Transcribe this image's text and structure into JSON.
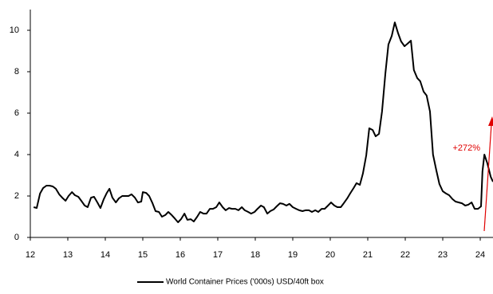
{
  "chart_data": {
    "type": "line",
    "x": [
      12.09,
      12.17,
      12.26,
      12.34,
      12.43,
      12.51,
      12.6,
      12.68,
      12.77,
      12.85,
      12.94,
      13.02,
      13.11,
      13.19,
      13.28,
      13.36,
      13.45,
      13.53,
      13.62,
      13.7,
      13.79,
      13.87,
      13.96,
      14.04,
      14.11,
      14.19,
      14.28,
      14.36,
      14.45,
      14.53,
      14.62,
      14.7,
      14.79,
      14.87,
      14.96,
      15.0,
      15.09,
      15.17,
      15.26,
      15.34,
      15.43,
      15.51,
      15.6,
      15.68,
      15.77,
      15.85,
      15.94,
      16.02,
      16.11,
      16.19,
      16.28,
      16.36,
      16.45,
      16.53,
      16.62,
      16.7,
      16.79,
      16.87,
      16.96,
      17.04,
      17.13,
      17.21,
      17.3,
      17.38,
      17.47,
      17.55,
      17.64,
      17.72,
      17.81,
      17.89,
      17.98,
      18.06,
      18.15,
      18.23,
      18.32,
      18.4,
      18.49,
      18.57,
      18.66,
      18.74,
      18.83,
      18.91,
      19.0,
      19.09,
      19.17,
      19.26,
      19.34,
      19.43,
      19.51,
      19.6,
      19.68,
      19.77,
      19.85,
      19.94,
      20.02,
      20.11,
      20.19,
      20.28,
      20.36,
      20.45,
      20.53,
      20.62,
      20.7,
      20.79,
      20.87,
      20.96,
      21.04,
      21.13,
      21.21,
      21.3,
      21.38,
      21.47,
      21.55,
      21.64,
      21.72,
      21.81,
      21.89,
      21.98,
      22.06,
      22.15,
      22.23,
      22.32,
      22.4,
      22.49,
      22.57,
      22.66,
      22.74,
      22.83,
      22.91,
      23.0,
      23.09,
      23.17,
      23.26,
      23.34,
      23.43,
      23.51,
      23.6,
      23.68,
      23.77,
      23.85,
      23.94,
      24.02,
      24.06,
      24.11,
      24.19,
      24.28,
      24.34
    ],
    "series": [
      {
        "name": "World Container Prices ('000s) USD/40ft box",
        "color": "#000000",
        "values": [
          1.46,
          1.42,
          2.12,
          2.38,
          2.5,
          2.5,
          2.46,
          2.35,
          2.08,
          1.92,
          1.77,
          2.0,
          2.19,
          2.04,
          1.96,
          1.77,
          1.54,
          1.46,
          1.92,
          1.96,
          1.69,
          1.42,
          1.85,
          2.15,
          2.35,
          1.92,
          1.69,
          1.88,
          2.0,
          2.0,
          2.0,
          2.08,
          1.92,
          1.69,
          1.73,
          2.19,
          2.15,
          2.0,
          1.65,
          1.27,
          1.23,
          1.0,
          1.08,
          1.23,
          1.08,
          0.92,
          0.73,
          0.88,
          1.15,
          0.85,
          0.88,
          0.77,
          1.0,
          1.23,
          1.15,
          1.15,
          1.38,
          1.38,
          1.46,
          1.69,
          1.46,
          1.31,
          1.42,
          1.38,
          1.38,
          1.31,
          1.46,
          1.31,
          1.23,
          1.15,
          1.23,
          1.38,
          1.54,
          1.46,
          1.15,
          1.27,
          1.35,
          1.5,
          1.65,
          1.62,
          1.54,
          1.62,
          1.46,
          1.38,
          1.31,
          1.27,
          1.31,
          1.31,
          1.23,
          1.31,
          1.23,
          1.38,
          1.38,
          1.54,
          1.69,
          1.54,
          1.46,
          1.46,
          1.65,
          1.88,
          2.12,
          2.38,
          2.62,
          2.54,
          3.08,
          3.96,
          5.27,
          5.19,
          4.88,
          5.0,
          6.08,
          7.92,
          9.31,
          9.73,
          10.38,
          9.85,
          9.46,
          9.23,
          9.35,
          9.5,
          8.08,
          7.69,
          7.54,
          7.04,
          6.85,
          6.08,
          4.0,
          3.23,
          2.58,
          2.23,
          2.12,
          2.04,
          1.85,
          1.73,
          1.69,
          1.65,
          1.54,
          1.58,
          1.69,
          1.38,
          1.38,
          1.5,
          3.19,
          4.0,
          3.58,
          2.92,
          2.69
        ]
      }
    ],
    "xlim": [
      12,
      24.34
    ],
    "xticks": [
      12,
      13,
      14,
      15,
      16,
      17,
      18,
      19,
      20,
      21,
      22,
      23,
      24
    ],
    "ylim": [
      0,
      11
    ],
    "yticks": [
      0,
      2,
      4,
      6,
      8,
      10
    ],
    "annotation": "+272%",
    "annotation_color": "#e00000",
    "legend": "bottom"
  }
}
